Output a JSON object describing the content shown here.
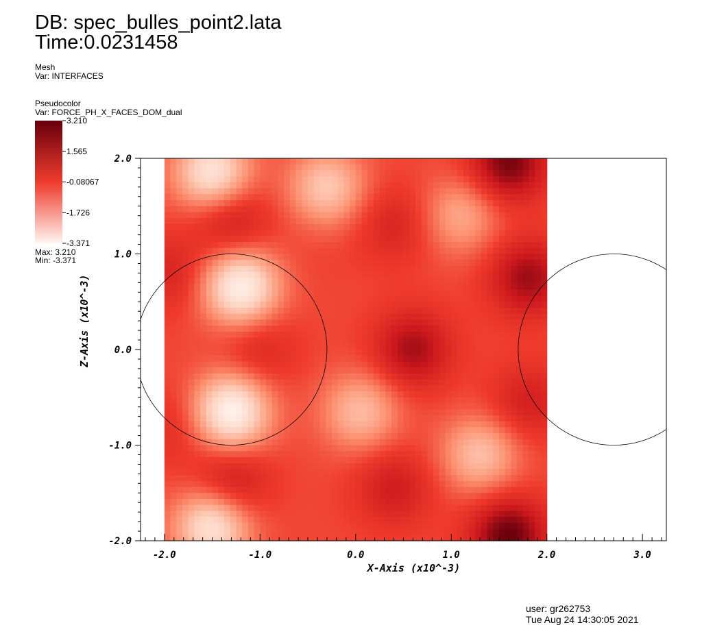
{
  "header": {
    "db": "DB: spec_bulles_point2.lata",
    "time": "Time:0.0231458"
  },
  "mesh_legend": {
    "title": "Mesh",
    "var": "Var: INTERFACES"
  },
  "pseudocolor_legend": {
    "title": "Pseudocolor",
    "var": "Var: FORCE_PH_X_FACES_DOM_dual",
    "labels": [
      "3.210",
      "1.565",
      "-0.08067",
      "-1.726",
      "-3.371"
    ],
    "max_text": "Max:  3.210",
    "min_text": "Min: -3.371",
    "colors": {
      "high": "#67000d",
      "mid": "#ef3b2c",
      "low": "#fff5f0"
    }
  },
  "footer": {
    "user": "user: gr262753",
    "date": "Tue Aug 24 14:30:05 2021"
  },
  "chart_data": {
    "type": "heatmap",
    "xlabel": "X-Axis (x10^-3)",
    "ylabel": "Z-Axis (x10^-3)",
    "xlim": [
      -2.25,
      3.25
    ],
    "ylim": [
      -2.0,
      2.0
    ],
    "x_ticks": [
      "-2.0",
      "-1.0",
      "0.0",
      "1.0",
      "2.0",
      "3.0"
    ],
    "y_ticks": [
      "2.0",
      "1.0",
      "0.0",
      "-1.0",
      "-2.0"
    ],
    "field_extent": {
      "x": [
        -2.0,
        2.0
      ],
      "z": [
        -2.0,
        2.0
      ]
    },
    "value_range": [
      -3.371,
      3.21
    ],
    "interfaces": [
      {
        "cx": -1.3,
        "cz": 0.0,
        "r": 1.0
      },
      {
        "cx": 2.7,
        "cz": 0.0,
        "r": 1.0
      }
    ],
    "field_features": [
      {
        "x": -1.2,
        "z": 0.65,
        "value": -3.2
      },
      {
        "x": -1.3,
        "z": -0.65,
        "value": -3.3
      },
      {
        "x": -1.5,
        "z": 1.85,
        "value": -2.8
      },
      {
        "x": -1.5,
        "z": -1.85,
        "value": -2.8
      },
      {
        "x": -1.3,
        "z": 1.35,
        "value": 1.8
      },
      {
        "x": -1.3,
        "z": -1.4,
        "value": 1.9
      },
      {
        "x": -1.0,
        "z": 0.0,
        "value": 1.3
      },
      {
        "x": -1.95,
        "z": 0.8,
        "value": 1.4
      },
      {
        "x": -1.95,
        "z": -0.8,
        "value": 1.1
      },
      {
        "x": 0.6,
        "z": 0.0,
        "value": 2.4
      },
      {
        "x": 1.6,
        "z": 1.95,
        "value": 3.0
      },
      {
        "x": 1.6,
        "z": -1.95,
        "value": 3.2
      },
      {
        "x": 1.8,
        "z": 0.75,
        "value": 2.5
      },
      {
        "x": 1.8,
        "z": -0.55,
        "value": 1.6
      },
      {
        "x": 0.4,
        "z": 1.3,
        "value": 1.4
      },
      {
        "x": 0.4,
        "z": -1.45,
        "value": 1.7
      },
      {
        "x": -0.3,
        "z": 1.7,
        "value": -1.9
      },
      {
        "x": 0.05,
        "z": -0.65,
        "value": -1.6
      },
      {
        "x": 1.3,
        "z": -1.1,
        "value": -1.7
      },
      {
        "x": 1.1,
        "z": 1.4,
        "value": -1.2
      },
      {
        "x": -0.4,
        "z": 1.0,
        "value": 0.5
      },
      {
        "x": -0.3,
        "z": -1.0,
        "value": 0.4
      }
    ]
  }
}
